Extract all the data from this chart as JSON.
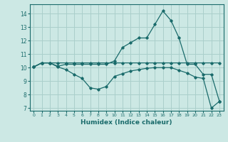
{
  "title": "",
  "xlabel": "Humidex (Indice chaleur)",
  "bg_color": "#cce8e4",
  "grid_color": "#aacfcb",
  "line_color": "#1a6b6b",
  "xlim": [
    -0.5,
    23.5
  ],
  "ylim": [
    6.8,
    14.7
  ],
  "yticks": [
    7,
    8,
    9,
    10,
    11,
    12,
    13,
    14
  ],
  "xticks": [
    0,
    1,
    2,
    3,
    4,
    5,
    6,
    7,
    8,
    9,
    10,
    11,
    12,
    13,
    14,
    15,
    16,
    17,
    18,
    19,
    20,
    21,
    22,
    23
  ],
  "series1_x": [
    0,
    1,
    2,
    3,
    4,
    5,
    6,
    7,
    8,
    9,
    10,
    11,
    12,
    13,
    14,
    15,
    16,
    17,
    18,
    19,
    20,
    21,
    22,
    23
  ],
  "series1_y": [
    10.05,
    10.35,
    10.35,
    10.1,
    10.25,
    10.25,
    10.25,
    10.25,
    10.25,
    10.25,
    10.5,
    11.5,
    11.85,
    12.2,
    12.2,
    13.2,
    14.2,
    13.5,
    12.2,
    10.25,
    10.25,
    9.5,
    9.5,
    7.5
  ],
  "series2_x": [
    0,
    1,
    2,
    3,
    4,
    5,
    6,
    7,
    8,
    9,
    10,
    11,
    12,
    13,
    14,
    15,
    16,
    17,
    18,
    19,
    20,
    21,
    22,
    23
  ],
  "series2_y": [
    10.05,
    10.35,
    10.35,
    10.05,
    9.85,
    9.5,
    9.2,
    8.5,
    8.4,
    8.6,
    9.35,
    9.55,
    9.75,
    9.85,
    9.95,
    10.0,
    10.0,
    10.0,
    9.8,
    9.6,
    9.3,
    9.2,
    7.0,
    7.5
  ],
  "series3_x": [
    0,
    1,
    2,
    3,
    4,
    5,
    6,
    7,
    8,
    9,
    10,
    11,
    12,
    13,
    14,
    15,
    16,
    17,
    18,
    19,
    20,
    21,
    22,
    23
  ],
  "series3_y": [
    10.05,
    10.35,
    10.35,
    10.35,
    10.35,
    10.35,
    10.35,
    10.35,
    10.35,
    10.35,
    10.35,
    10.35,
    10.35,
    10.35,
    10.35,
    10.35,
    10.35,
    10.35,
    10.35,
    10.35,
    10.35,
    10.35,
    10.35,
    10.35
  ]
}
